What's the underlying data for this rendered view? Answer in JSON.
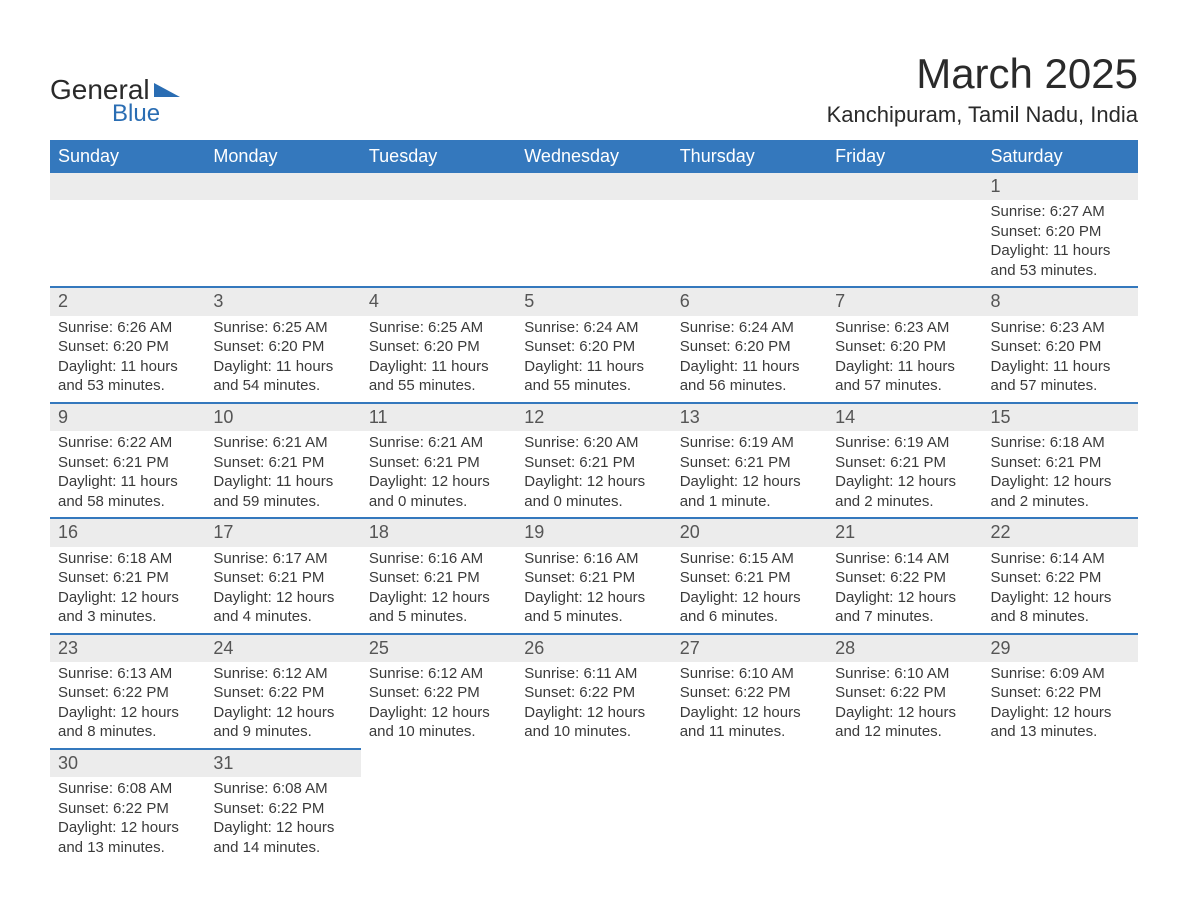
{
  "logo": {
    "text1": "General",
    "text2": "Blue"
  },
  "title": {
    "month": "March 2025",
    "location": "Kanchipuram, Tamil Nadu, India"
  },
  "colors": {
    "header_bg": "#3478bd",
    "header_text": "#ffffff",
    "daynum_bg": "#ececec",
    "row_border": "#3478bd",
    "body_text": "#3a3a3a",
    "logo_accent": "#2a6db3"
  },
  "weekdays": [
    "Sunday",
    "Monday",
    "Tuesday",
    "Wednesday",
    "Thursday",
    "Friday",
    "Saturday"
  ],
  "weeks": [
    [
      null,
      null,
      null,
      null,
      null,
      null,
      {
        "d": "1",
        "sr": "Sunrise: 6:27 AM",
        "ss": "Sunset: 6:20 PM",
        "dl1": "Daylight: 11 hours",
        "dl2": "and 53 minutes."
      }
    ],
    [
      {
        "d": "2",
        "sr": "Sunrise: 6:26 AM",
        "ss": "Sunset: 6:20 PM",
        "dl1": "Daylight: 11 hours",
        "dl2": "and 53 minutes."
      },
      {
        "d": "3",
        "sr": "Sunrise: 6:25 AM",
        "ss": "Sunset: 6:20 PM",
        "dl1": "Daylight: 11 hours",
        "dl2": "and 54 minutes."
      },
      {
        "d": "4",
        "sr": "Sunrise: 6:25 AM",
        "ss": "Sunset: 6:20 PM",
        "dl1": "Daylight: 11 hours",
        "dl2": "and 55 minutes."
      },
      {
        "d": "5",
        "sr": "Sunrise: 6:24 AM",
        "ss": "Sunset: 6:20 PM",
        "dl1": "Daylight: 11 hours",
        "dl2": "and 55 minutes."
      },
      {
        "d": "6",
        "sr": "Sunrise: 6:24 AM",
        "ss": "Sunset: 6:20 PM",
        "dl1": "Daylight: 11 hours",
        "dl2": "and 56 minutes."
      },
      {
        "d": "7",
        "sr": "Sunrise: 6:23 AM",
        "ss": "Sunset: 6:20 PM",
        "dl1": "Daylight: 11 hours",
        "dl2": "and 57 minutes."
      },
      {
        "d": "8",
        "sr": "Sunrise: 6:23 AM",
        "ss": "Sunset: 6:20 PM",
        "dl1": "Daylight: 11 hours",
        "dl2": "and 57 minutes."
      }
    ],
    [
      {
        "d": "9",
        "sr": "Sunrise: 6:22 AM",
        "ss": "Sunset: 6:21 PM",
        "dl1": "Daylight: 11 hours",
        "dl2": "and 58 minutes."
      },
      {
        "d": "10",
        "sr": "Sunrise: 6:21 AM",
        "ss": "Sunset: 6:21 PM",
        "dl1": "Daylight: 11 hours",
        "dl2": "and 59 minutes."
      },
      {
        "d": "11",
        "sr": "Sunrise: 6:21 AM",
        "ss": "Sunset: 6:21 PM",
        "dl1": "Daylight: 12 hours",
        "dl2": "and 0 minutes."
      },
      {
        "d": "12",
        "sr": "Sunrise: 6:20 AM",
        "ss": "Sunset: 6:21 PM",
        "dl1": "Daylight: 12 hours",
        "dl2": "and 0 minutes."
      },
      {
        "d": "13",
        "sr": "Sunrise: 6:19 AM",
        "ss": "Sunset: 6:21 PM",
        "dl1": "Daylight: 12 hours",
        "dl2": "and 1 minute."
      },
      {
        "d": "14",
        "sr": "Sunrise: 6:19 AM",
        "ss": "Sunset: 6:21 PM",
        "dl1": "Daylight: 12 hours",
        "dl2": "and 2 minutes."
      },
      {
        "d": "15",
        "sr": "Sunrise: 6:18 AM",
        "ss": "Sunset: 6:21 PM",
        "dl1": "Daylight: 12 hours",
        "dl2": "and 2 minutes."
      }
    ],
    [
      {
        "d": "16",
        "sr": "Sunrise: 6:18 AM",
        "ss": "Sunset: 6:21 PM",
        "dl1": "Daylight: 12 hours",
        "dl2": "and 3 minutes."
      },
      {
        "d": "17",
        "sr": "Sunrise: 6:17 AM",
        "ss": "Sunset: 6:21 PM",
        "dl1": "Daylight: 12 hours",
        "dl2": "and 4 minutes."
      },
      {
        "d": "18",
        "sr": "Sunrise: 6:16 AM",
        "ss": "Sunset: 6:21 PM",
        "dl1": "Daylight: 12 hours",
        "dl2": "and 5 minutes."
      },
      {
        "d": "19",
        "sr": "Sunrise: 6:16 AM",
        "ss": "Sunset: 6:21 PM",
        "dl1": "Daylight: 12 hours",
        "dl2": "and 5 minutes."
      },
      {
        "d": "20",
        "sr": "Sunrise: 6:15 AM",
        "ss": "Sunset: 6:21 PM",
        "dl1": "Daylight: 12 hours",
        "dl2": "and 6 minutes."
      },
      {
        "d": "21",
        "sr": "Sunrise: 6:14 AM",
        "ss": "Sunset: 6:22 PM",
        "dl1": "Daylight: 12 hours",
        "dl2": "and 7 minutes."
      },
      {
        "d": "22",
        "sr": "Sunrise: 6:14 AM",
        "ss": "Sunset: 6:22 PM",
        "dl1": "Daylight: 12 hours",
        "dl2": "and 8 minutes."
      }
    ],
    [
      {
        "d": "23",
        "sr": "Sunrise: 6:13 AM",
        "ss": "Sunset: 6:22 PM",
        "dl1": "Daylight: 12 hours",
        "dl2": "and 8 minutes."
      },
      {
        "d": "24",
        "sr": "Sunrise: 6:12 AM",
        "ss": "Sunset: 6:22 PM",
        "dl1": "Daylight: 12 hours",
        "dl2": "and 9 minutes."
      },
      {
        "d": "25",
        "sr": "Sunrise: 6:12 AM",
        "ss": "Sunset: 6:22 PM",
        "dl1": "Daylight: 12 hours",
        "dl2": "and 10 minutes."
      },
      {
        "d": "26",
        "sr": "Sunrise: 6:11 AM",
        "ss": "Sunset: 6:22 PM",
        "dl1": "Daylight: 12 hours",
        "dl2": "and 10 minutes."
      },
      {
        "d": "27",
        "sr": "Sunrise: 6:10 AM",
        "ss": "Sunset: 6:22 PM",
        "dl1": "Daylight: 12 hours",
        "dl2": "and 11 minutes."
      },
      {
        "d": "28",
        "sr": "Sunrise: 6:10 AM",
        "ss": "Sunset: 6:22 PM",
        "dl1": "Daylight: 12 hours",
        "dl2": "and 12 minutes."
      },
      {
        "d": "29",
        "sr": "Sunrise: 6:09 AM",
        "ss": "Sunset: 6:22 PM",
        "dl1": "Daylight: 12 hours",
        "dl2": "and 13 minutes."
      }
    ],
    [
      {
        "d": "30",
        "sr": "Sunrise: 6:08 AM",
        "ss": "Sunset: 6:22 PM",
        "dl1": "Daylight: 12 hours",
        "dl2": "and 13 minutes."
      },
      {
        "d": "31",
        "sr": "Sunrise: 6:08 AM",
        "ss": "Sunset: 6:22 PM",
        "dl1": "Daylight: 12 hours",
        "dl2": "and 14 minutes."
      },
      null,
      null,
      null,
      null,
      null
    ]
  ]
}
